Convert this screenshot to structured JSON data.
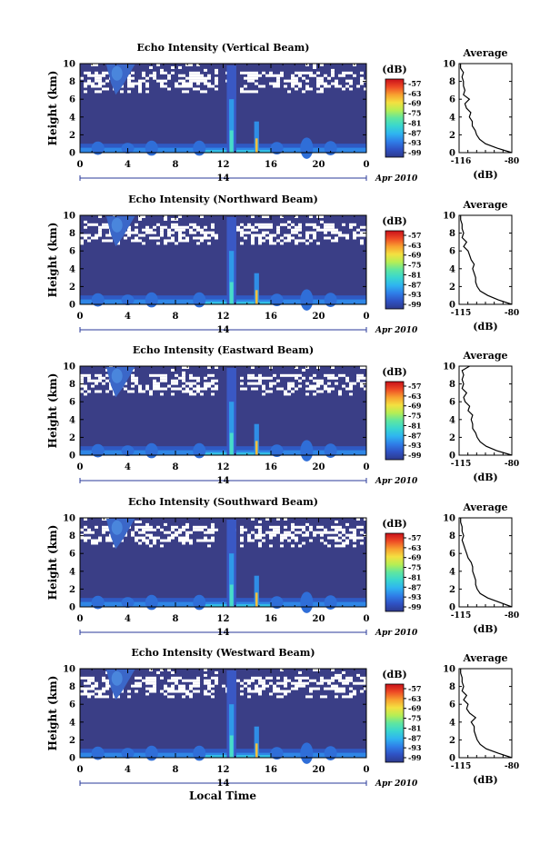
{
  "figure": {
    "xlabel_bottom": "Local Time",
    "date_label": "Apr 2010",
    "day_marker": "14",
    "ylabel": "Height (km)",
    "colorbar_unit": "(dB)",
    "colorbar_ticks": [
      "-57",
      "-63",
      "-69",
      "-75",
      "-81",
      "-87",
      "-93",
      "-99"
    ],
    "colors": [
      "#2e3a8c",
      "#2f52c4",
      "#2f7ee8",
      "#2fb4f0",
      "#39d6d0",
      "#5fe6a0",
      "#b6ee54",
      "#f4e040",
      "#f8a030",
      "#ee4a25",
      "#c8101a"
    ],
    "background_color": "#3a3e86"
  },
  "chart_data": [
    {
      "type": "heatmap",
      "title": "Echo Intensity (Vertical Beam)",
      "xlabel": "",
      "ylabel": "Height (km)",
      "xlim": [
        0,
        24
      ],
      "ylim": [
        0,
        10
      ],
      "x_ticks": [
        "0",
        "4",
        "8",
        "12",
        "16",
        "20",
        "0"
      ],
      "y_ticks": [
        "0",
        "2",
        "4",
        "6",
        "8",
        "10"
      ],
      "color_range_db": [
        -99,
        -57
      ],
      "average_profile": {
        "title": "Average",
        "xlabel": "(dB)",
        "x_ticks": [
          "-116",
          "-80"
        ],
        "y_ticks": [
          "0",
          "2",
          "4",
          "6",
          "8",
          "10"
        ],
        "xlim": [
          -116,
          -80
        ],
        "height_km": [
          0,
          0.5,
          1,
          1.5,
          2,
          2.5,
          3,
          3.5,
          4,
          4.5,
          5,
          5.5,
          6,
          6.5,
          7,
          7.5,
          8,
          8.5,
          9,
          9.5,
          10
        ],
        "db": [
          -80,
          -90,
          -98,
          -102,
          -104,
          -105,
          -107,
          -107,
          -109,
          -108,
          -111,
          -112,
          -109,
          -113,
          -112,
          -113,
          -113,
          -114,
          -113,
          -115,
          -115
        ]
      }
    },
    {
      "type": "heatmap",
      "title": "Echo Intensity (Northward Beam)",
      "xlabel": "",
      "ylabel": "Height (km)",
      "xlim": [
        0,
        24
      ],
      "ylim": [
        0,
        10
      ],
      "x_ticks": [
        "0",
        "4",
        "8",
        "12",
        "16",
        "20",
        "0"
      ],
      "y_ticks": [
        "0",
        "2",
        "4",
        "6",
        "8",
        "10"
      ],
      "color_range_db": [
        -99,
        -57
      ],
      "average_profile": {
        "title": "Average",
        "xlabel": "(dB)",
        "x_ticks": [
          "-115",
          "-80"
        ],
        "y_ticks": [
          "0",
          "2",
          "4",
          "6",
          "8",
          "10"
        ],
        "xlim": [
          -115,
          -80
        ],
        "height_km": [
          0,
          0.5,
          1,
          1.5,
          2,
          2.5,
          3,
          3.5,
          4,
          4.5,
          5,
          5.5,
          6,
          6.5,
          7,
          7.5,
          8,
          8.5,
          9,
          9.5,
          10
        ],
        "db": [
          -80,
          -89,
          -96,
          -101,
          -103,
          -104,
          -104,
          -105,
          -106,
          -105,
          -107,
          -108,
          -109,
          -112,
          -110,
          -113,
          -112,
          -113,
          -113,
          -114,
          -114
        ]
      }
    },
    {
      "type": "heatmap",
      "title": "Echo Intensity (Eastward Beam)",
      "xlabel": "",
      "ylabel": "Height (km)",
      "xlim": [
        0,
        24
      ],
      "ylim": [
        0,
        10
      ],
      "x_ticks": [
        "0",
        "4",
        "8",
        "12",
        "16",
        "20",
        "0"
      ],
      "y_ticks": [
        "0",
        "2",
        "4",
        "6",
        "8",
        "10"
      ],
      "color_range_db": [
        -99,
        -57
      ],
      "average_profile": {
        "title": "Average",
        "xlabel": "(dB)",
        "x_ticks": [
          "-115",
          "-80"
        ],
        "y_ticks": [
          "0",
          "2",
          "4",
          "6",
          "8",
          "10"
        ],
        "xlim": [
          -115,
          -80
        ],
        "height_km": [
          0,
          0.5,
          1,
          1.5,
          2,
          2.5,
          3,
          3.5,
          4,
          4.5,
          5,
          5.5,
          6,
          6.5,
          7,
          7.5,
          8,
          8.5,
          9,
          9.5,
          10
        ],
        "db": [
          -80,
          -90,
          -97,
          -101,
          -103,
          -104,
          -106,
          -106,
          -107,
          -106,
          -109,
          -108,
          -111,
          -112,
          -110,
          -113,
          -112,
          -113,
          -112,
          -113,
          -108
        ]
      }
    },
    {
      "type": "heatmap",
      "title": "Echo Intensity (Southward Beam)",
      "xlabel": "",
      "ylabel": "Height (km)",
      "xlim": [
        0,
        24
      ],
      "ylim": [
        0,
        10
      ],
      "x_ticks": [
        "0",
        "4",
        "8",
        "12",
        "16",
        "20",
        "0"
      ],
      "y_ticks": [
        "0",
        "2",
        "4",
        "6",
        "8",
        "10"
      ],
      "color_range_db": [
        -99,
        -57
      ],
      "average_profile": {
        "title": "Average",
        "xlabel": "(dB)",
        "x_ticks": [
          "-115",
          "-80"
        ],
        "y_ticks": [
          "0",
          "2",
          "4",
          "6",
          "8",
          "10"
        ],
        "xlim": [
          -115,
          -80
        ],
        "height_km": [
          0,
          0.5,
          1,
          1.5,
          2,
          2.5,
          3,
          3.5,
          4,
          4.5,
          5,
          5.5,
          6,
          6.5,
          7,
          7.5,
          8,
          8.5,
          9,
          9.5,
          10
        ],
        "db": [
          -80,
          -88,
          -96,
          -101,
          -103,
          -104,
          -104,
          -105,
          -106,
          -106,
          -107,
          -109,
          -110,
          -111,
          -112,
          -113,
          -112,
          -113,
          -113,
          -114,
          -114
        ]
      }
    },
    {
      "type": "heatmap",
      "title": "Echo Intensity (Westward Beam)",
      "xlabel": "Local Time",
      "ylabel": "Height (km)",
      "xlim": [
        0,
        24
      ],
      "ylim": [
        0,
        10
      ],
      "x_ticks": [
        "0",
        "4",
        "8",
        "12",
        "16",
        "20",
        "0"
      ],
      "y_ticks": [
        "0",
        "2",
        "4",
        "6",
        "8",
        "10"
      ],
      "color_range_db": [
        -99,
        -57
      ],
      "average_profile": {
        "title": "Average",
        "xlabel": "(dB)",
        "x_ticks": [
          "-115",
          "-80"
        ],
        "y_ticks": [
          "0",
          "2",
          "4",
          "6",
          "8",
          "10"
        ],
        "xlim": [
          -115,
          -80
        ],
        "height_km": [
          0,
          0.5,
          1,
          1.5,
          2,
          2.5,
          3,
          3.5,
          4,
          4.5,
          5,
          5.5,
          6,
          6.5,
          7,
          7.5,
          8,
          8.5,
          9,
          9.5,
          10
        ],
        "db": [
          -80,
          -89,
          -97,
          -101,
          -103,
          -104,
          -105,
          -105,
          -107,
          -104,
          -108,
          -110,
          -109,
          -112,
          -110,
          -113,
          -112,
          -113,
          -113,
          -114,
          -114
        ]
      }
    }
  ]
}
